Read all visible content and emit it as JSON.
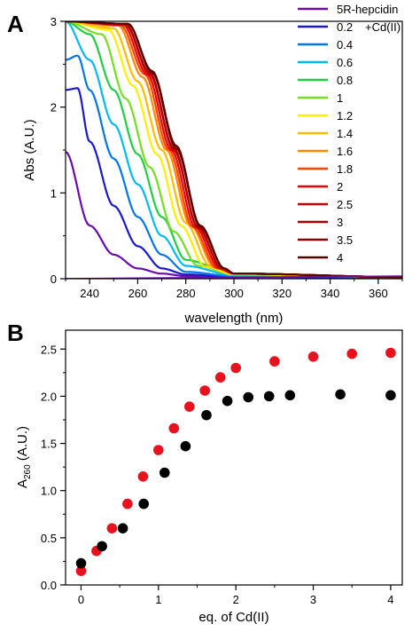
{
  "chart_data": [
    {
      "panel": "A",
      "type": "line",
      "xlabel": "wavelength (nm)",
      "ylabel": "Abs (A.U.)",
      "xlim": [
        230,
        370
      ],
      "ylim": [
        0,
        3
      ],
      "xticks": [
        240,
        260,
        280,
        300,
        320,
        340,
        360
      ],
      "yticks": [
        0,
        1,
        2,
        3
      ],
      "legend_placement": "right",
      "legend_title_line1_suffix": "+Cd(II)",
      "series": [
        {
          "name": "5R-hepcidin",
          "color": "#6a0dad",
          "values_at_x": {
            "230": 1.48,
            "240": 0.62,
            "250": 0.28,
            "260": 0.12,
            "270": 0.06,
            "280": 0.03,
            "300": 0.02,
            "370": 0.01
          }
        },
        {
          "name": "0.2",
          "color": "#1a1acc",
          "values_at_x": {
            "230": 2.2,
            "235": 2.22,
            "240": 1.6,
            "250": 0.85,
            "260": 0.38,
            "270": 0.12,
            "280": 0.05,
            "300": 0.02,
            "370": 0.01
          }
        },
        {
          "name": "0.4",
          "color": "#0077e6",
          "values_at_x": {
            "230": 2.55,
            "235": 2.6,
            "240": 2.2,
            "250": 1.4,
            "260": 0.72,
            "270": 0.28,
            "280": 0.08,
            "300": 0.03,
            "370": 0.02
          }
        },
        {
          "name": "0.6",
          "color": "#00bbee",
          "values_at_x": {
            "230": 3.0,
            "240": 2.55,
            "250": 1.8,
            "260": 1.1,
            "270": 0.5,
            "280": 0.15,
            "300": 0.04,
            "370": 0.02
          }
        },
        {
          "name": "0.8",
          "color": "#22cc44",
          "values_at_x": {
            "230": 3.0,
            "240": 2.85,
            "250": 2.2,
            "260": 1.45,
            "270": 0.72,
            "280": 0.22,
            "300": 0.05,
            "370": 0.02
          }
        },
        {
          "name": "1",
          "color": "#77dd22",
          "values_at_x": {
            "230": 3.0,
            "245": 2.85,
            "255": 2.1,
            "265": 1.3,
            "275": 0.55,
            "285": 0.15,
            "300": 0.05,
            "370": 0.02
          }
        },
        {
          "name": "1.2",
          "color": "#ffee00",
          "values_at_x": {
            "230": 3.0,
            "248": 2.9,
            "258": 2.25,
            "268": 1.45,
            "278": 0.62,
            "288": 0.14,
            "300": 0.05,
            "370": 0.02
          }
        },
        {
          "name": "1.4",
          "color": "#ffbb00",
          "values_at_x": {
            "230": 3.0,
            "250": 2.92,
            "260": 2.3,
            "270": 1.5,
            "280": 0.65,
            "290": 0.15,
            "300": 0.06,
            "370": 0.02
          }
        },
        {
          "name": "1.6",
          "color": "#ff8800",
          "values_at_x": {
            "230": 3.0,
            "252": 2.95,
            "262": 2.35,
            "272": 1.5,
            "282": 0.62,
            "292": 0.13,
            "300": 0.06,
            "370": 0.02
          }
        },
        {
          "name": "1.8",
          "color": "#ff4400",
          "values_at_x": {
            "230": 3.0,
            "253": 2.95,
            "263": 2.38,
            "273": 1.5,
            "283": 0.6,
            "293": 0.12,
            "300": 0.06,
            "370": 0.02
          }
        },
        {
          "name": "2",
          "color": "#ee0000",
          "values_at_x": {
            "230": 3.0,
            "254": 2.96,
            "264": 2.38,
            "274": 1.5,
            "284": 0.6,
            "294": 0.12,
            "300": 0.06,
            "370": 0.02
          }
        },
        {
          "name": "2.5",
          "color": "#cc0000",
          "values_at_x": {
            "230": 3.0,
            "255": 2.96,
            "265": 2.38,
            "275": 1.5,
            "285": 0.6,
            "295": 0.12,
            "300": 0.06,
            "370": 0.02
          }
        },
        {
          "name": "3",
          "color": "#aa0000",
          "values_at_x": {
            "230": 3.0,
            "255": 2.97,
            "265": 2.4,
            "275": 1.52,
            "285": 0.6,
            "295": 0.12,
            "300": 0.06,
            "370": 0.02
          }
        },
        {
          "name": "3.5",
          "color": "#880000",
          "values_at_x": {
            "230": 3.0,
            "256": 2.97,
            "266": 2.4,
            "276": 1.52,
            "286": 0.6,
            "296": 0.12,
            "300": 0.06,
            "370": 0.02
          }
        },
        {
          "name": "4",
          "color": "#5a0000",
          "values_at_x": {
            "230": 3.0,
            "256": 2.97,
            "266": 2.42,
            "276": 1.55,
            "286": 0.62,
            "296": 0.12,
            "300": 0.06,
            "370": 0.02
          }
        }
      ]
    },
    {
      "panel": "B",
      "type": "scatter",
      "xlabel": "eq. of Cd(II)",
      "ylabel_main": "A",
      "ylabel_sub": "260",
      "ylabel_suffix": " (A.U.)",
      "xlim": [
        -0.2,
        4.15
      ],
      "ylim": [
        0,
        2.7
      ],
      "xticks": [
        0,
        1,
        2,
        3,
        4
      ],
      "yticks": [
        0.0,
        0.5,
        1.0,
        1.5,
        2.0,
        2.5
      ],
      "ytick_labels": [
        "0.0",
        "0.5",
        "1.0",
        "1.5",
        "2.0",
        "2.5"
      ],
      "series": [
        {
          "color": "#e8121e",
          "x": [
            0,
            0.2,
            0.4,
            0.6,
            0.8,
            1.0,
            1.2,
            1.4,
            1.6,
            1.8,
            2.0,
            2.5,
            3.0,
            3.5,
            4.0
          ],
          "y": [
            0.15,
            0.36,
            0.6,
            0.86,
            1.15,
            1.43,
            1.66,
            1.89,
            2.06,
            2.2,
            2.3,
            2.37,
            2.42,
            2.45,
            2.46
          ]
        },
        {
          "color": "#000000",
          "x": [
            0,
            0.27,
            0.54,
            0.81,
            1.08,
            1.35,
            1.62,
            1.89,
            2.16,
            2.43,
            2.7,
            3.35,
            4.0
          ],
          "y": [
            0.23,
            0.41,
            0.6,
            0.86,
            1.19,
            1.47,
            1.8,
            1.95,
            1.99,
            2.0,
            2.01,
            2.02,
            2.01
          ]
        }
      ]
    }
  ]
}
